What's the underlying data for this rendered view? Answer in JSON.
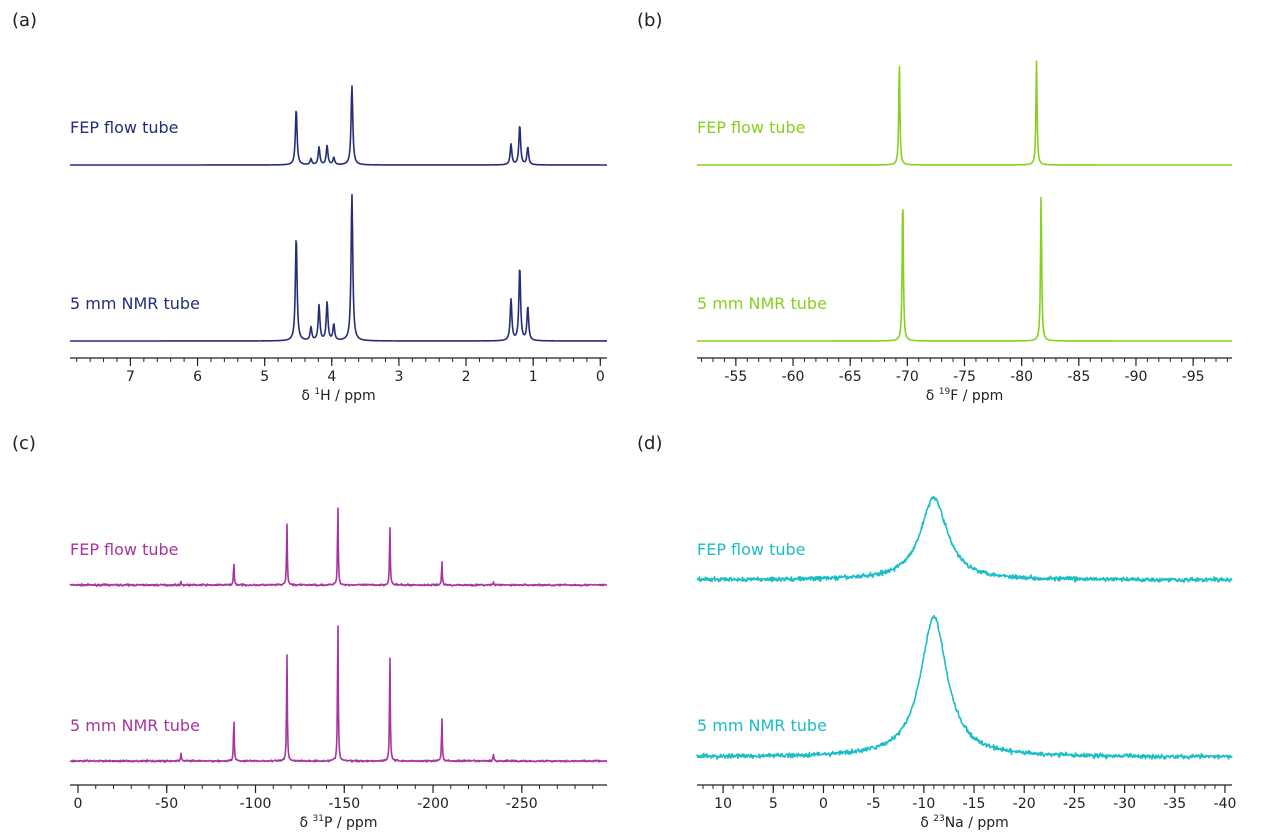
{
  "chart_data": [
    {
      "panel": "(a)",
      "type": "line",
      "color": "#252d78",
      "xlabel_prefix": "δ ",
      "xlabel_sup": "1",
      "xlabel_rest": "H / ppm",
      "xlim": [
        7.9,
        -0.1
      ],
      "xticks": [
        7,
        6,
        5,
        4,
        3,
        2,
        1,
        0
      ],
      "minor_step": 0.2,
      "ylim": [
        0,
        100
      ],
      "linewidth_ppm": 0.015,
      "noise": 0,
      "peaks_ppm": [
        4.53,
        4.31,
        4.19,
        4.07,
        3.97,
        3.7,
        1.33,
        1.2,
        1.08
      ],
      "series": [
        {
          "name": "FEP flow tube",
          "intensities": [
            38,
            4,
            12,
            13,
            5,
            54,
            14,
            27,
            12
          ]
        },
        {
          "name": "5 mm NMR tube",
          "intensities": [
            71,
            9,
            24,
            26,
            11,
            100,
            28,
            50,
            23
          ]
        }
      ]
    },
    {
      "panel": "(b)",
      "type": "line",
      "color": "#86d11f",
      "xlabel_prefix": "δ ",
      "xlabel_sup": "19",
      "xlabel_rest": "F / ppm",
      "xlim": [
        -51.6,
        -98.4
      ],
      "xticks": [
        -55,
        -60,
        -65,
        -70,
        -75,
        -80,
        -85,
        -90,
        -95
      ],
      "minor_step": 1,
      "ylim": [
        0,
        100
      ],
      "linewidth_ppm": 0.06,
      "noise": 0,
      "series": [
        {
          "name": "FEP flow tube",
          "peaks_ppm": [
            -69.3,
            -81.3
          ],
          "intensities": [
            71,
            71
          ]
        },
        {
          "name": "5 mm NMR tube",
          "peaks_ppm": [
            -69.6,
            -81.7
          ],
          "intensities": [
            100,
            100
          ]
        }
      ]
    },
    {
      "panel": "(c)",
      "type": "line",
      "color": "#a8349e",
      "xlabel_prefix": "δ ",
      "xlabel_sup": "31",
      "xlabel_rest": "P / ppm",
      "xlim": [
        4.5,
        -298
      ],
      "xticks": [
        0,
        -50,
        -100,
        -150,
        -200,
        -250
      ],
      "minor_step": 10,
      "ylim": [
        0,
        100
      ],
      "linewidth_ppm": 0.25,
      "noise": 0.6,
      "peaks_ppm": [
        -58,
        -87.8,
        -117.7,
        -146.4,
        -175.7,
        -205,
        -234
      ],
      "series": [
        {
          "name": "FEP flow tube",
          "intensities": [
            2,
            16,
            43,
            57,
            42,
            16,
            2
          ]
        },
        {
          "name": "5 mm NMR tube",
          "intensities": [
            5,
            30,
            75,
            100,
            75,
            30,
            5
          ]
        }
      ]
    },
    {
      "panel": "(d)",
      "type": "line",
      "color": "#1bbdc6",
      "xlabel_prefix": "δ ",
      "xlabel_sup": "23",
      "xlabel_rest": "Na / ppm",
      "xlim": [
        12.6,
        -40.7
      ],
      "xticks": [
        10,
        5,
        0,
        -5,
        -10,
        -15,
        -20,
        -25,
        -30,
        -35,
        -40
      ],
      "minor_step": 1,
      "ylim": [
        0,
        100
      ],
      "linewidth_ppm": 1.6,
      "noise": 1.6,
      "peaks_ppm": [
        -11.0
      ],
      "series": [
        {
          "name": "FEP flow tube",
          "intensities": [
            59
          ]
        },
        {
          "name": "5 mm NMR tube",
          "intensities": [
            100
          ]
        }
      ]
    }
  ]
}
